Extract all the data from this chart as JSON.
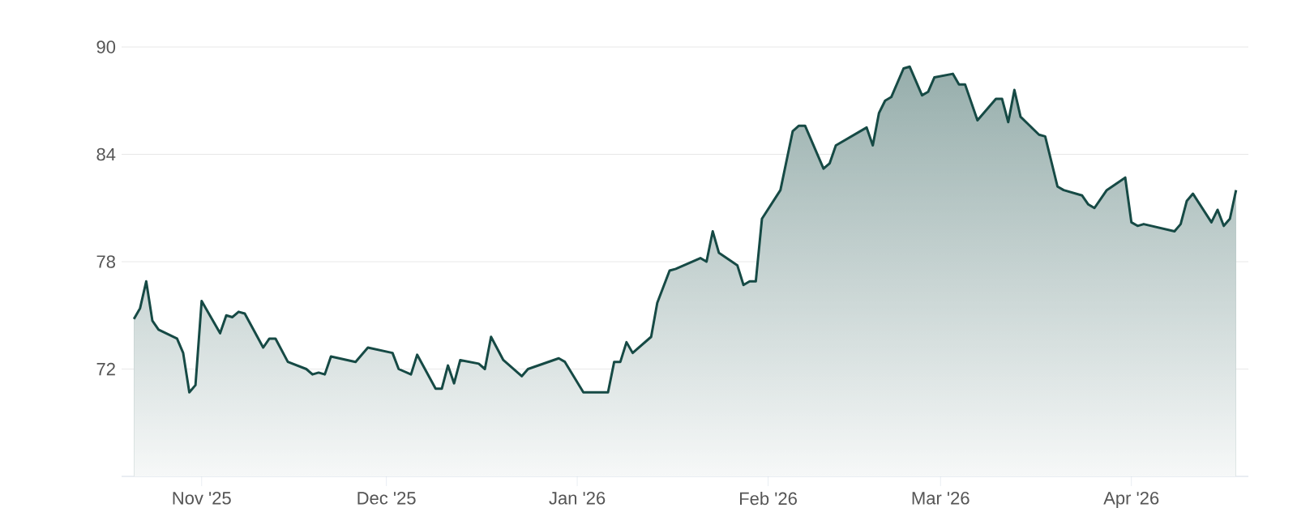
{
  "chart_data": {
    "type": "area",
    "grid": "y",
    "marker": "none",
    "line_style": "solid",
    "xlim": [
      "2025-10-19",
      "2026-04-20"
    ],
    "ylim": [
      66,
      90
    ],
    "yticks": [
      72,
      78,
      84,
      90
    ],
    "xticks": [
      {
        "value": "2025-11-01",
        "label": "Nov '25"
      },
      {
        "value": "2025-12-01",
        "label": "Dec '25"
      },
      {
        "value": "2026-01-01",
        "label": "Jan '26"
      },
      {
        "value": "2026-02-01",
        "label": "Feb '26"
      },
      {
        "value": "2026-03-01",
        "label": "Mar '26"
      },
      {
        "value": "2026-04-01",
        "label": "Apr '26"
      }
    ],
    "series": [
      {
        "color": "#164a45",
        "x": [
          "2025-10-21",
          "2025-10-22",
          "2025-10-23",
          "2025-10-24",
          "2025-10-25",
          "2025-10-28",
          "2025-10-29",
          "2025-10-30",
          "2025-10-31",
          "2025-11-01",
          "2025-11-04",
          "2025-11-05",
          "2025-11-06",
          "2025-11-07",
          "2025-11-08",
          "2025-11-11",
          "2025-11-12",
          "2025-11-13",
          "2025-11-15",
          "2025-11-18",
          "2025-11-19",
          "2025-11-20",
          "2025-11-21",
          "2025-11-22",
          "2025-11-26",
          "2025-11-28",
          "2025-12-02",
          "2025-12-03",
          "2025-12-05",
          "2025-12-06",
          "2025-12-09",
          "2025-12-10",
          "2025-12-11",
          "2025-12-12",
          "2025-12-13",
          "2025-12-16",
          "2025-12-17",
          "2025-12-18",
          "2025-12-20",
          "2025-12-23",
          "2025-12-24",
          "2025-12-29",
          "2025-12-30",
          "2026-01-02",
          "2026-01-06",
          "2026-01-07",
          "2026-01-08",
          "2026-01-09",
          "2026-01-10",
          "2026-01-13",
          "2026-01-14",
          "2026-01-16",
          "2026-01-17",
          "2026-01-21",
          "2026-01-22",
          "2026-01-23",
          "2026-01-24",
          "2026-01-27",
          "2026-01-28",
          "2026-01-29",
          "2026-01-30",
          "2026-01-31",
          "2026-02-03",
          "2026-02-05",
          "2026-02-06",
          "2026-02-07",
          "2026-02-10",
          "2026-02-11",
          "2026-02-12",
          "2026-02-17",
          "2026-02-18",
          "2026-02-19",
          "2026-02-20",
          "2026-02-21",
          "2026-02-23",
          "2026-02-24",
          "2026-02-26",
          "2026-02-27",
          "2026-02-28",
          "2026-03-03",
          "2026-03-04",
          "2026-03-05",
          "2026-03-07",
          "2026-03-10",
          "2026-03-11",
          "2026-03-12",
          "2026-03-13",
          "2026-03-14",
          "2026-03-17",
          "2026-03-18",
          "2026-03-20",
          "2026-03-21",
          "2026-03-24",
          "2026-03-25",
          "2026-03-26",
          "2026-03-28",
          "2026-03-31",
          "2026-04-01",
          "2026-04-02",
          "2026-04-03",
          "2026-04-08",
          "2026-04-09",
          "2026-04-10",
          "2026-04-11",
          "2026-04-14",
          "2026-04-15",
          "2026-04-16",
          "2026-04-17",
          "2026-04-18"
        ],
        "values": [
          74.8,
          75.4,
          76.9,
          74.7,
          74.2,
          73.7,
          72.9,
          70.7,
          71.1,
          75.8,
          74.0,
          75.0,
          74.9,
          75.2,
          75.1,
          73.2,
          73.7,
          73.7,
          72.4,
          72.0,
          71.7,
          71.8,
          71.7,
          72.7,
          72.4,
          73.2,
          72.9,
          72.0,
          71.7,
          72.8,
          70.9,
          70.9,
          72.2,
          71.2,
          72.5,
          72.3,
          72.0,
          73.8,
          72.5,
          71.6,
          72.0,
          72.6,
          72.4,
          70.7,
          70.7,
          72.4,
          72.4,
          73.5,
          72.9,
          73.8,
          75.7,
          77.5,
          77.6,
          78.2,
          78.0,
          79.7,
          78.5,
          77.8,
          76.7,
          76.9,
          76.9,
          80.4,
          82.0,
          85.3,
          85.6,
          85.6,
          83.2,
          83.5,
          84.5,
          85.5,
          84.5,
          86.3,
          87.0,
          87.2,
          88.8,
          88.9,
          87.3,
          87.5,
          88.3,
          88.5,
          87.9,
          87.9,
          85.9,
          87.1,
          87.1,
          85.8,
          87.6,
          86.1,
          85.1,
          85.0,
          82.2,
          82.0,
          81.7,
          81.2,
          81.0,
          82.0,
          82.7,
          80.2,
          80.0,
          80.1,
          79.7,
          80.1,
          81.4,
          81.8,
          80.2,
          80.9,
          80.0,
          80.4,
          82.0
        ]
      }
    ]
  }
}
